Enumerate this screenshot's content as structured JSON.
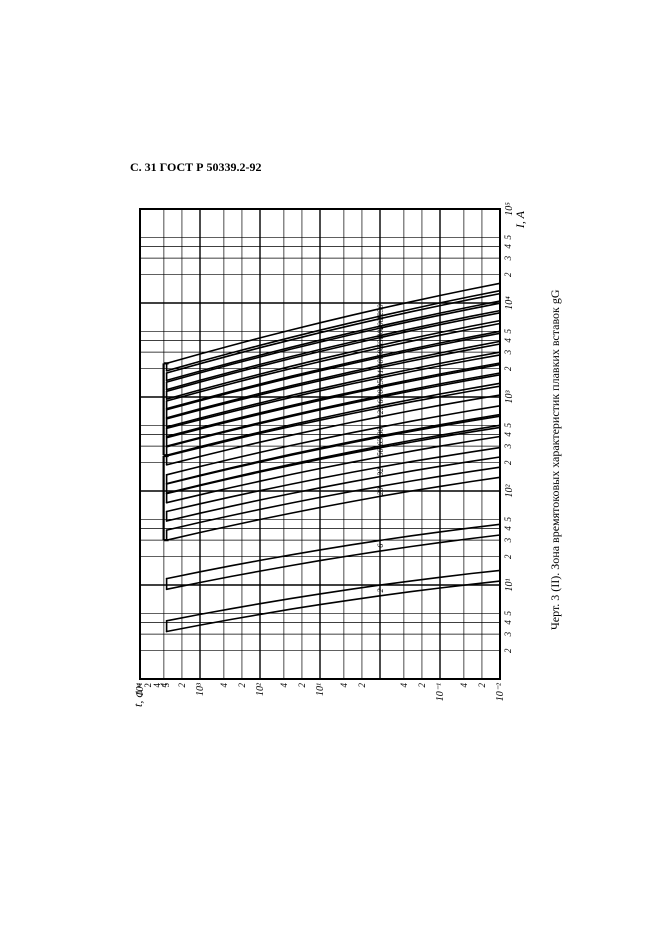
{
  "header": "С. 31 ГОСТ Р 50339.2-92",
  "caption": "Черт. 3 (II). Зона времятоковых характеристик плавких вставок gG",
  "chart": {
    "type": "log-log-curves",
    "background_color": "#ffffff",
    "ink_color": "#000000",
    "axis_line_width": 2.0,
    "grid_major_width": 1.4,
    "grid_minor_width": 0.7,
    "curve_width": 1.6,
    "font_family": "Times New Roman",
    "tick_fontsize": 10,
    "label_fontsize": 12,
    "rotated_deg": 90,
    "x_axis": {
      "label": "I, A",
      "min_exp": 0,
      "max_exp": 5,
      "decade_ticks": [
        1,
        10,
        100,
        1000,
        10000,
        100000
      ],
      "decade_labels": [
        "",
        "10¹",
        "10²",
        "10³",
        "10⁴",
        "10⁵"
      ],
      "minor_ticks": [
        2,
        3,
        4,
        5
      ],
      "minor_labels": [
        "2",
        "3",
        "4",
        "5"
      ]
    },
    "y_axis": {
      "label": "t, c",
      "min_exp": -2,
      "max_exp": 4,
      "decade_ticks": [
        0.01,
        0.1,
        1,
        10,
        100,
        1000,
        10000
      ],
      "decade_labels": [
        "10⁻²",
        "10⁻¹",
        "",
        "10¹",
        "10²",
        "10³",
        "10⁴"
      ],
      "upper_extra": [
        "1 ч",
        "2",
        "4",
        "5"
      ],
      "minor_ticks": [
        2,
        4
      ],
      "minor_labels": [
        "2",
        "4"
      ]
    },
    "curve_labels": [
      "2",
      "6",
      "20",
      "32",
      "50",
      "63",
      "80",
      "125",
      "160",
      "200",
      "250",
      "315",
      "400",
      "500",
      "630",
      "800",
      "1000",
      "1250"
    ],
    "bands": [
      {
        "name": "2",
        "i_at_1h": 3.2,
        "i_at_0p01": 11,
        "width_factor": 1.3
      },
      {
        "name": "6",
        "i_at_1h": 9,
        "i_at_0p01": 34,
        "width_factor": 1.3
      },
      {
        "name": "20",
        "i_at_1h": 30,
        "i_at_0p01": 140,
        "width_factor": 1.28
      },
      {
        "name": "32",
        "i_at_1h": 48,
        "i_at_0p01": 230,
        "width_factor": 1.26
      },
      {
        "name": "50",
        "i_at_1h": 75,
        "i_at_0p01": 380,
        "width_factor": 1.25
      },
      {
        "name": "63",
        "i_at_1h": 95,
        "i_at_0p01": 500,
        "width_factor": 1.25
      },
      {
        "name": "80",
        "i_at_1h": 120,
        "i_at_0p01": 650,
        "width_factor": 1.24
      },
      {
        "name": "125",
        "i_at_1h": 190,
        "i_at_0p01": 1050,
        "width_factor": 1.24
      },
      {
        "name": "160",
        "i_at_1h": 240,
        "i_at_0p01": 1400,
        "width_factor": 1.23
      },
      {
        "name": "200",
        "i_at_1h": 300,
        "i_at_0p01": 1800,
        "width_factor": 1.23
      },
      {
        "name": "250",
        "i_at_1h": 380,
        "i_at_0p01": 2300,
        "width_factor": 1.22
      },
      {
        "name": "315",
        "i_at_1h": 480,
        "i_at_0p01": 3000,
        "width_factor": 1.22
      },
      {
        "name": "400",
        "i_at_1h": 600,
        "i_at_0p01": 3900,
        "width_factor": 1.22
      },
      {
        "name": "500",
        "i_at_1h": 750,
        "i_at_0p01": 5000,
        "width_factor": 1.21
      },
      {
        "name": "630",
        "i_at_1h": 950,
        "i_at_0p01": 6500,
        "width_factor": 1.21
      },
      {
        "name": "800",
        "i_at_1h": 1200,
        "i_at_0p01": 8300,
        "width_factor": 1.2
      },
      {
        "name": "1000",
        "i_at_1h": 1500,
        "i_at_0p01": 10500,
        "width_factor": 1.2
      },
      {
        "name": "1250",
        "i_at_1h": 1900,
        "i_at_0p01": 13500,
        "width_factor": 1.2
      }
    ],
    "time_samples": [
      3600,
      1000,
      300,
      100,
      30,
      10,
      3,
      1,
      0.3,
      0.1,
      0.03,
      0.01
    ],
    "band_label_time": 1.0,
    "top_bar_groups": [
      {
        "from_band": 2,
        "to_band": 7
      },
      {
        "from_band": 8,
        "to_band": 17
      }
    ]
  }
}
